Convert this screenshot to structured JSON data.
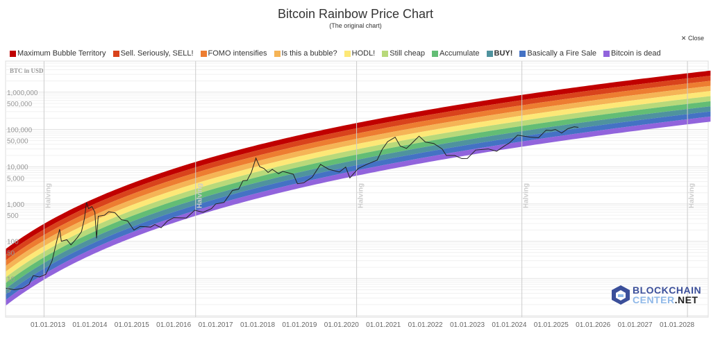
{
  "header": {
    "title": "Bitcoin Rainbow Price Chart",
    "subtitle": "(The original chart)",
    "close_label": "Close",
    "close_icon": "x-icon"
  },
  "logo": {
    "line1": "BLOCKCHAIN",
    "line2a": "CENTER",
    "line2b": ".NET"
  },
  "chart_data": {
    "type": "line",
    "title": "Bitcoin Rainbow Price Chart",
    "subtitle": "(The original chart)",
    "ylabel": "BTC in USD",
    "yscale": "log",
    "ylim": [
      1,
      10000000
    ],
    "xlim": [
      "2012-01-01",
      "2028-09-30"
    ],
    "yticks": [
      {
        "v": 1000000,
        "label": "1,000,000"
      },
      {
        "v": 500000,
        "label": "500,000"
      },
      {
        "v": 100000,
        "label": "100,000"
      },
      {
        "v": 50000,
        "label": "50,000"
      },
      {
        "v": 10000,
        "label": "10,000"
      },
      {
        "v": 5000,
        "label": "5,000"
      },
      {
        "v": 1000,
        "label": "1,000"
      },
      {
        "v": 500,
        "label": "500"
      },
      {
        "v": 100,
        "label": "100"
      },
      {
        "v": 50,
        "label": "50"
      },
      {
        "v": 10,
        "label": "10"
      },
      {
        "v": 5,
        "label": "5"
      }
    ],
    "xticks": [
      "01.01.2013",
      "01.01.2014",
      "01.01.2015",
      "01.01.2016",
      "01.01.2017",
      "01.01.2018",
      "01.01.2019",
      "01.01.2020",
      "01.01.2021",
      "01.01.2022",
      "01.01.2023",
      "01.01.2024",
      "01.01.2025",
      "01.01.2026",
      "01.01.2027",
      "01.01.2028"
    ],
    "annotations": [
      {
        "date": "2012-11-28",
        "label": "Halving"
      },
      {
        "date": "2016-07-09",
        "label": "Halving"
      },
      {
        "date": "2020-05-11",
        "label": "Halving"
      },
      {
        "date": "2024-04-20",
        "label": "Halving"
      },
      {
        "date": "2028-04-01",
        "label": "Halving"
      }
    ],
    "legend_placement": "top",
    "bands": [
      {
        "name": "Maximum Bubble Territory",
        "color": "#c00000"
      },
      {
        "name": "Sell. Seriously, SELL!",
        "color": "#d9431c"
      },
      {
        "name": "FOMO intensifies",
        "color": "#ed7d31"
      },
      {
        "name": "Is this a bubble?",
        "color": "#f5b456"
      },
      {
        "name": "HODL!",
        "color": "#fde877"
      },
      {
        "name": "Still cheap",
        "color": "#b8d97a"
      },
      {
        "name": "Accumulate",
        "color": "#63bd75"
      },
      {
        "name": "BUY!",
        "color": "#4f939e",
        "bold": true
      },
      {
        "name": "Basically a Fire Sale",
        "color": "#4472c4"
      },
      {
        "name": "Bitcoin is dead",
        "color": "#9164dc"
      }
    ],
    "series": [
      {
        "color": "#222222",
        "points": [
          [
            2012.0,
            5.5
          ],
          [
            2012.2,
            5
          ],
          [
            2012.4,
            5.5
          ],
          [
            2012.55,
            7
          ],
          [
            2012.65,
            12
          ],
          [
            2012.8,
            11
          ],
          [
            2012.95,
            13
          ],
          [
            2013.1,
            30
          ],
          [
            2013.2,
            90
          ],
          [
            2013.28,
            210
          ],
          [
            2013.32,
            100
          ],
          [
            2013.45,
            110
          ],
          [
            2013.55,
            80
          ],
          [
            2013.7,
            125
          ],
          [
            2013.8,
            180
          ],
          [
            2013.87,
            400
          ],
          [
            2013.92,
            1100
          ],
          [
            2013.97,
            750
          ],
          [
            2014.05,
            850
          ],
          [
            2014.12,
            600
          ],
          [
            2014.16,
            120
          ],
          [
            2014.2,
            470
          ],
          [
            2014.35,
            500
          ],
          [
            2014.45,
            620
          ],
          [
            2014.6,
            580
          ],
          [
            2014.75,
            380
          ],
          [
            2014.9,
            350
          ],
          [
            2015.05,
            200
          ],
          [
            2015.2,
            250
          ],
          [
            2015.45,
            240
          ],
          [
            2015.55,
            280
          ],
          [
            2015.7,
            230
          ],
          [
            2015.85,
            350
          ],
          [
            2016.0,
            430
          ],
          [
            2016.3,
            420
          ],
          [
            2016.5,
            680
          ],
          [
            2016.7,
            600
          ],
          [
            2016.9,
            750
          ],
          [
            2017.0,
            1000
          ],
          [
            2017.2,
            1100
          ],
          [
            2017.4,
            2300
          ],
          [
            2017.55,
            2500
          ],
          [
            2017.65,
            4200
          ],
          [
            2017.75,
            4300
          ],
          [
            2017.85,
            7000
          ],
          [
            2017.96,
            17000
          ],
          [
            2018.05,
            10000
          ],
          [
            2018.15,
            9000
          ],
          [
            2018.25,
            7000
          ],
          [
            2018.35,
            8500
          ],
          [
            2018.5,
            6500
          ],
          [
            2018.6,
            7500
          ],
          [
            2018.85,
            6300
          ],
          [
            2018.95,
            3500
          ],
          [
            2019.1,
            3700
          ],
          [
            2019.3,
            5200
          ],
          [
            2019.5,
            11500
          ],
          [
            2019.7,
            8500
          ],
          [
            2019.95,
            7200
          ],
          [
            2020.1,
            9800
          ],
          [
            2020.2,
            5000
          ],
          [
            2020.4,
            9000
          ],
          [
            2020.6,
            11500
          ],
          [
            2020.85,
            15000
          ],
          [
            2020.97,
            29000
          ],
          [
            2021.1,
            47000
          ],
          [
            2021.28,
            62000
          ],
          [
            2021.4,
            36000
          ],
          [
            2021.55,
            31000
          ],
          [
            2021.7,
            45000
          ],
          [
            2021.85,
            66000
          ],
          [
            2022.0,
            46000
          ],
          [
            2022.2,
            42000
          ],
          [
            2022.4,
            30000
          ],
          [
            2022.5,
            20000
          ],
          [
            2022.7,
            20000
          ],
          [
            2022.87,
            16500
          ],
          [
            2023.0,
            16600
          ],
          [
            2023.2,
            28000
          ],
          [
            2023.5,
            30000
          ],
          [
            2023.7,
            26000
          ],
          [
            2023.9,
            37000
          ],
          [
            2024.0,
            43000
          ],
          [
            2024.2,
            70000
          ],
          [
            2024.5,
            62000
          ],
          [
            2024.7,
            60000
          ],
          [
            2024.88,
            96000
          ],
          [
            2025.0,
            94000
          ],
          [
            2025.1,
            100000
          ],
          [
            2025.25,
            80000
          ],
          [
            2025.4,
            105000
          ],
          [
            2025.55,
            118000
          ],
          [
            2025.65,
            114000
          ]
        ]
      }
    ]
  }
}
